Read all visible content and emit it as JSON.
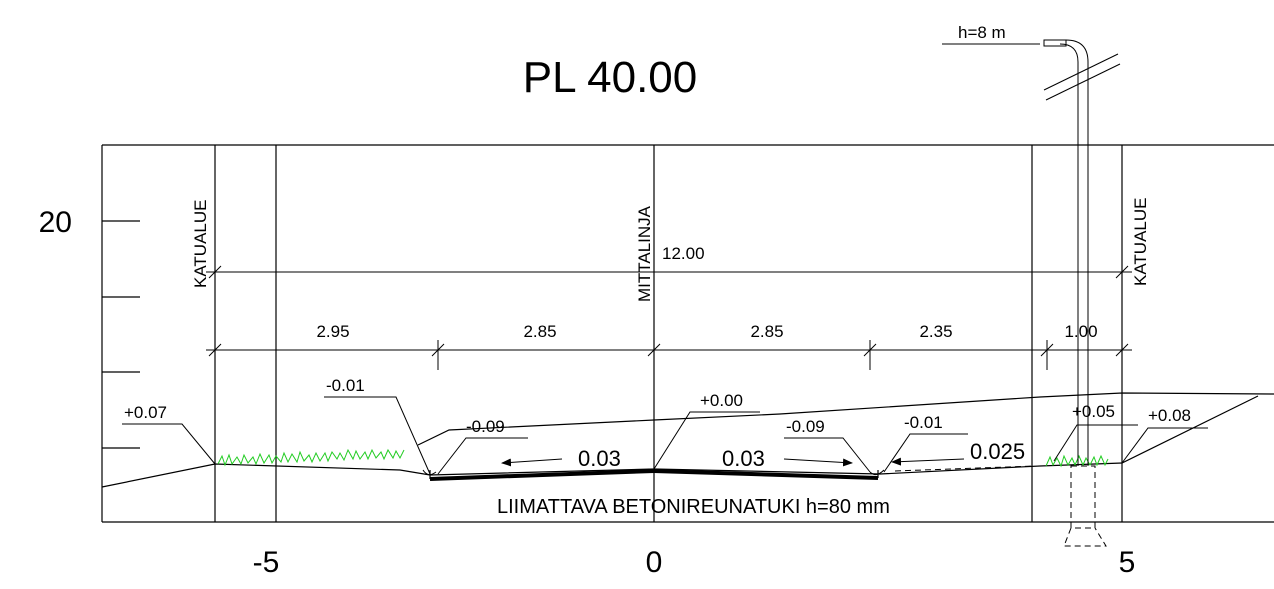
{
  "title": "PL 40.00",
  "elevation_label": "20",
  "x_axis_labels": [
    "-5",
    "0",
    "5"
  ],
  "vertical_labels": {
    "left_boundary": "KATUALUE",
    "centerline": "MITTALINJA",
    "right_boundary": "KATUALUE"
  },
  "dimensions": {
    "total": "12.00",
    "segments": [
      "2.95",
      "2.85",
      "2.85",
      "2.35",
      "1.00"
    ]
  },
  "level_labels": [
    "+0.07",
    "-0.01",
    "-0.09",
    "+0.00",
    "-0.09",
    "-0.01",
    "+0.05",
    "+0.08"
  ],
  "slope_labels": [
    "0.03",
    "0.03",
    "0.025"
  ],
  "curb_note": "LIIMATTAVA BETONIREUNATUKI h=80 mm",
  "lamp_label": "h=8 m",
  "colors": {
    "line": "#000000",
    "grass": "#22cc22",
    "background": "#ffffff"
  }
}
